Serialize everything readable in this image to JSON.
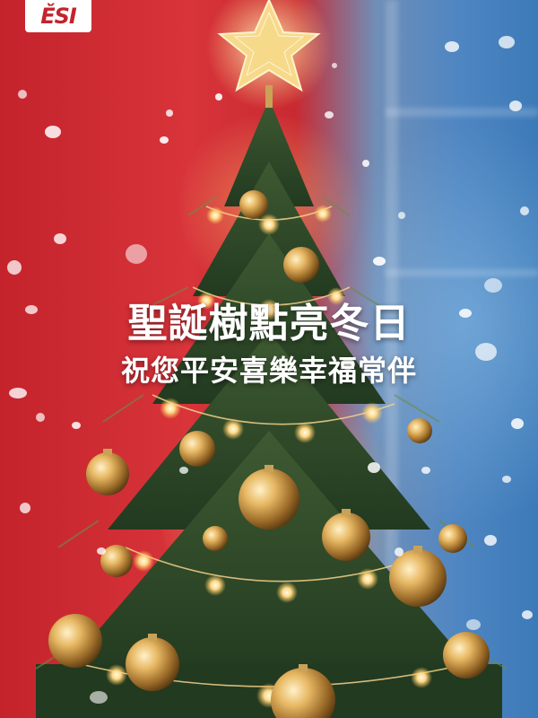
{
  "logo": {
    "text": "ĚSI"
  },
  "greeting": {
    "title": "聖誕樹點亮冬日",
    "subtitle": "祝您平安喜樂幸福常伴"
  },
  "colors": {
    "background_red": "#c4232c",
    "background_blue": "#4f86c2",
    "text": "#ffffff",
    "tree_green": "#2f4a2a",
    "ornament_gold": "#d9a84e",
    "light_glow": "#ffd68a"
  },
  "icons": {
    "star": "star-topper-icon"
  }
}
